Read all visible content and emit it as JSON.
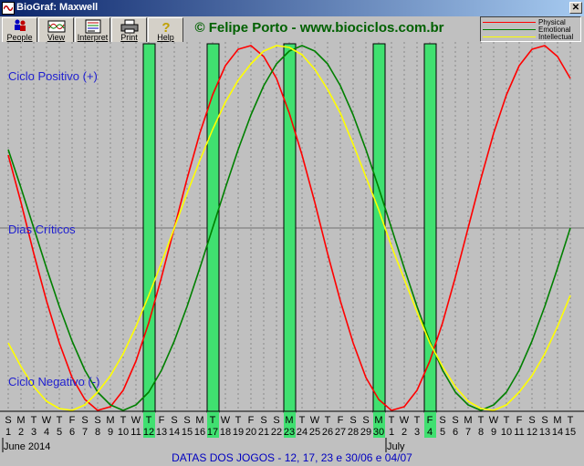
{
  "window": {
    "title": "BioGraf: Maxwell"
  },
  "toolbar": {
    "buttons": [
      {
        "label": "People",
        "icon": "people-icon"
      },
      {
        "label": "View",
        "icon": "view-icon"
      },
      {
        "label": "Interpret",
        "icon": "interpret-icon"
      },
      {
        "label": "Print",
        "icon": "printer-icon"
      },
      {
        "label": "Help",
        "icon": "help-icon"
      }
    ]
  },
  "header": {
    "credit": "© Felipe Porto - www.biociclos.com.br"
  },
  "legend": {
    "items": [
      {
        "label": "Physical",
        "color": "#ff0000"
      },
      {
        "label": "Emotional",
        "color": "#008000"
      },
      {
        "label": "Intellectual",
        "color": "#ffff00"
      }
    ]
  },
  "chart_data": {
    "type": "line",
    "x_days": [
      1,
      2,
      3,
      4,
      5,
      6,
      7,
      8,
      9,
      10,
      11,
      12,
      13,
      14,
      15,
      16,
      17,
      18,
      19,
      20,
      21,
      22,
      23,
      24,
      25,
      26,
      27,
      28,
      29,
      30,
      1,
      2,
      3,
      4,
      5,
      6,
      7,
      8,
      9,
      10,
      11,
      12,
      13,
      14,
      15
    ],
    "x_weekdays": [
      "S",
      "M",
      "T",
      "W",
      "T",
      "F",
      "S",
      "S",
      "M",
      "T",
      "W",
      "T",
      "F",
      "S",
      "S",
      "M",
      "T",
      "W",
      "T",
      "F",
      "S",
      "S",
      "M",
      "T",
      "W",
      "T",
      "F",
      "S",
      "S",
      "M",
      "T",
      "W",
      "T",
      "F",
      "S",
      "S",
      "M",
      "T",
      "W",
      "T",
      "F",
      "S",
      "S",
      "M",
      "T"
    ],
    "month_labels": [
      {
        "label": "June 2014",
        "at_day_index": 0
      },
      {
        "label": "July",
        "at_day_index": 30
      }
    ],
    "y_labels": {
      "positive": "Ciclo Positivo (+)",
      "zero": "Dias Críticos",
      "negative": "Ciclo Negativo (-)"
    },
    "ylim": [
      -1,
      1
    ],
    "highlight_day_indices": [
      11,
      16,
      22,
      29,
      33
    ],
    "highlight_color": "#40e070",
    "series": [
      {
        "name": "Physical",
        "color": "#ff0000",
        "values": [
          0.4,
          0.14,
          -0.14,
          -0.4,
          -0.63,
          -0.82,
          -0.94,
          -1.0,
          -0.98,
          -0.89,
          -0.73,
          -0.52,
          -0.27,
          0.0,
          0.27,
          0.52,
          0.73,
          0.89,
          0.98,
          1.0,
          0.94,
          0.82,
          0.63,
          0.4,
          0.14,
          -0.14,
          -0.4,
          -0.63,
          -0.82,
          -0.94,
          -1.0,
          -0.98,
          -0.89,
          -0.73,
          -0.52,
          -0.27,
          0.0,
          0.27,
          0.52,
          0.73,
          0.89,
          0.98,
          1.0,
          0.94,
          0.82
        ]
      },
      {
        "name": "Emotional",
        "color": "#008000",
        "values": [
          0.43,
          0.22,
          0.0,
          -0.22,
          -0.43,
          -0.62,
          -0.78,
          -0.9,
          -0.97,
          -1.0,
          -0.97,
          -0.9,
          -0.78,
          -0.62,
          -0.43,
          -0.22,
          0.0,
          0.22,
          0.43,
          0.62,
          0.78,
          0.9,
          0.97,
          1.0,
          0.97,
          0.9,
          0.78,
          0.62,
          0.43,
          0.22,
          0.0,
          -0.22,
          -0.43,
          -0.62,
          -0.78,
          -0.9,
          -0.97,
          -1.0,
          -0.97,
          -0.9,
          -0.78,
          -0.62,
          -0.43,
          -0.22,
          0.0
        ]
      },
      {
        "name": "Intellectual",
        "color": "#ffff00",
        "values": [
          -0.63,
          -0.76,
          -0.87,
          -0.95,
          -0.99,
          -1.0,
          -0.97,
          -0.9,
          -0.81,
          -0.69,
          -0.54,
          -0.37,
          -0.19,
          0.0,
          0.19,
          0.37,
          0.54,
          0.69,
          0.81,
          0.9,
          0.97,
          1.0,
          0.99,
          0.95,
          0.87,
          0.76,
          0.63,
          0.46,
          0.28,
          0.1,
          -0.1,
          -0.28,
          -0.46,
          -0.63,
          -0.76,
          -0.87,
          -0.95,
          -0.99,
          -1.0,
          -0.97,
          -0.9,
          -0.81,
          -0.69,
          -0.54,
          -0.37
        ]
      }
    ]
  },
  "footer": {
    "caption": "DATAS DOS JOGOS - 12, 17, 23 e 30/06 e 04/07"
  }
}
